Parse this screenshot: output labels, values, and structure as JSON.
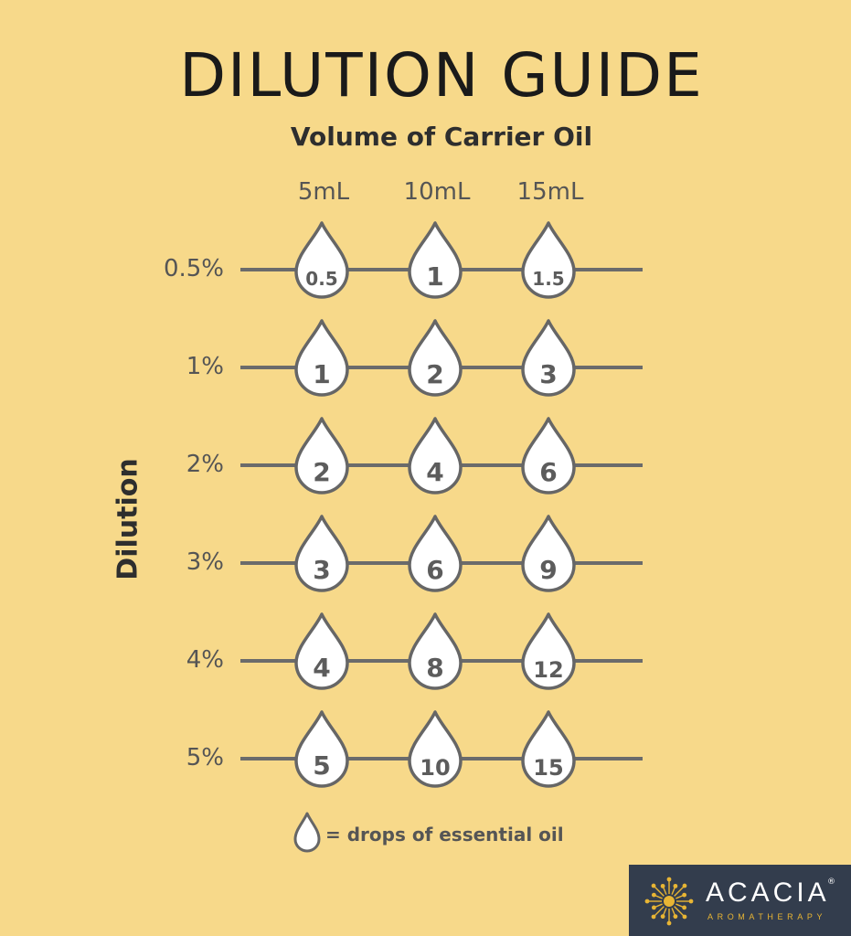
{
  "title": "DILUTION GUIDE",
  "subtitle": "Volume of Carrier Oil",
  "axis_label": "Dilution",
  "columns": [
    "5mL",
    "10mL",
    "15mL"
  ],
  "rows": [
    {
      "label": "0.5%",
      "drops": [
        "0.5",
        "1",
        "1.5"
      ]
    },
    {
      "label": "1%",
      "drops": [
        "1",
        "2",
        "3"
      ]
    },
    {
      "label": "2%",
      "drops": [
        "2",
        "4",
        "6"
      ]
    },
    {
      "label": "3%",
      "drops": [
        "3",
        "6",
        "9"
      ]
    },
    {
      "label": "4%",
      "drops": [
        "4",
        "8",
        "12"
      ]
    },
    {
      "label": "5%",
      "drops": [
        "5",
        "10",
        "15"
      ]
    }
  ],
  "legend": {
    "icon": "drop-icon",
    "text": "= drops of essential oil"
  },
  "brand": {
    "name": "ACACIA",
    "registered": "®",
    "tagline": "AROMATHERAPY"
  },
  "colors": {
    "background": "#f7d98a",
    "drop_fill": "#ffffff",
    "drop_stroke": "#666666",
    "line": "#6b6b6b",
    "text": "#555555",
    "logo_bg": "#333d4d",
    "logo_accent": "#e8b534"
  }
}
